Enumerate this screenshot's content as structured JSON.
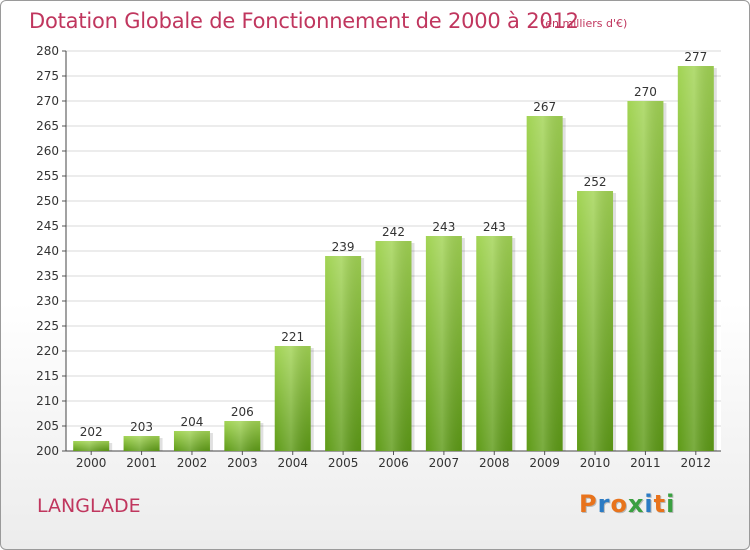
{
  "header": {
    "title": "Dotation Globale de Fonctionnement de 2000 à 2012",
    "unit": "(en milliers d'€)"
  },
  "footer": {
    "place": "LANGLADE",
    "logo_text": "Proxiti",
    "logo_colors": [
      "#e8731c",
      "#2b7bc4",
      "#e8731c",
      "#3aa041",
      "#2b7bc4",
      "#e8731c",
      "#3aa041"
    ]
  },
  "chart_data": {
    "type": "bar",
    "categories": [
      "2000",
      "2001",
      "2002",
      "2003",
      "2004",
      "2005",
      "2006",
      "2007",
      "2008",
      "2009",
      "2010",
      "2011",
      "2012"
    ],
    "values": [
      202,
      203,
      204,
      206,
      221,
      239,
      242,
      243,
      243,
      267,
      252,
      270,
      277
    ],
    "data_labels": [
      "202",
      "203",
      "204",
      "206",
      "221",
      "239",
      "242",
      "243",
      "243",
      "267",
      "252",
      "270",
      "277"
    ],
    "ylim": [
      200,
      280
    ],
    "yticks": [
      "200",
      "205",
      "210",
      "215",
      "220",
      "225",
      "230",
      "235",
      "240",
      "245",
      "250",
      "255",
      "260",
      "265",
      "270",
      "275",
      "280"
    ],
    "grid": true,
    "bar_color_top": "#a2d454",
    "bar_color_bottom": "#5e9b17",
    "text_color": "#333333",
    "grid_color": "#d8d8d8"
  }
}
